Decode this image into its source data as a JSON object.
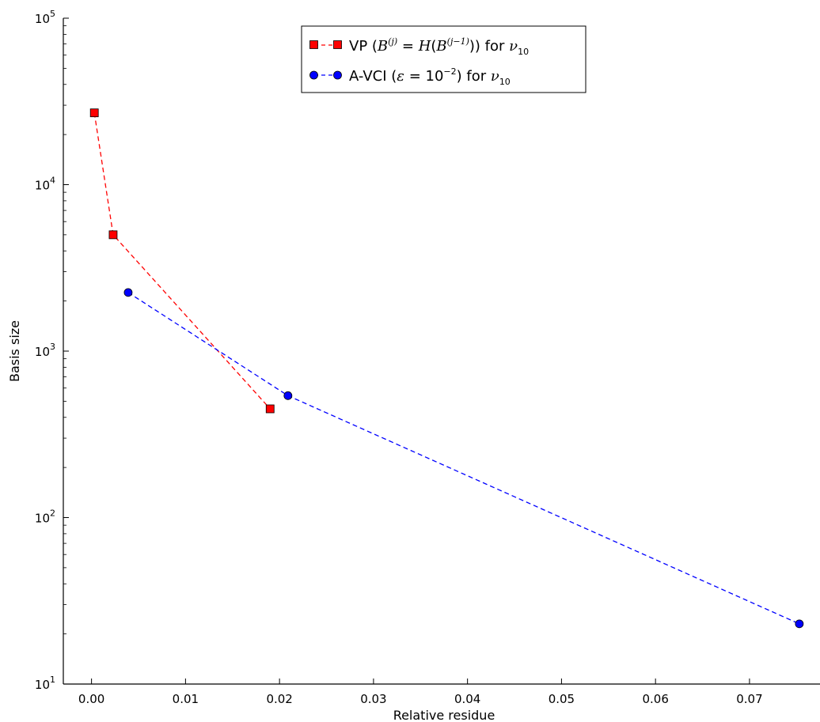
{
  "chart_data": {
    "type": "scatter",
    "title": "",
    "xlabel": "Relative residue",
    "ylabel": "Basis size",
    "xlim": [
      -0.003,
      0.0775
    ],
    "ylim": [
      10,
      100000
    ],
    "yscale": "log",
    "grid": false,
    "legend_position": "top-center",
    "x_ticks": [
      "0.00",
      "0.01",
      "0.02",
      "0.03",
      "0.04",
      "0.05",
      "0.06",
      "0.07"
    ],
    "x_tick_values": [
      0,
      0.01,
      0.02,
      0.03,
      0.04,
      0.05,
      0.06,
      0.07
    ],
    "y_tick_values": [
      10,
      100,
      1000,
      10000,
      100000
    ],
    "y_ticks": [
      {
        "base": "10",
        "exp": "1"
      },
      {
        "base": "10",
        "exp": "2"
      },
      {
        "base": "10",
        "exp": "3"
      },
      {
        "base": "10",
        "exp": "4"
      },
      {
        "base": "10",
        "exp": "5"
      }
    ],
    "series": [
      {
        "name": "VP (B(j) = H(B(j−1))) for ν10",
        "color": "#ff0000",
        "marker": "square",
        "linestyle": "dashed",
        "x": [
          0.0003,
          0.0023,
          0.019
        ],
        "y": [
          27000,
          5000,
          450
        ]
      },
      {
        "name": "A-VCI (ε = 10−2) for ν10",
        "color": "#0000ff",
        "marker": "circle",
        "linestyle": "dashed",
        "x": [
          0.0039,
          0.0209,
          0.0753
        ],
        "y": [
          2250,
          540,
          23
        ]
      }
    ],
    "legend": {
      "vp": {
        "prefix": "VP (",
        "b": "B",
        "bsup": "(j)",
        "eq": " = ",
        "h": "H",
        "paren_open": "(",
        "b2": "B",
        "b2sup": "(j−1)",
        "close": "))",
        "for": " for ",
        "nu": "ν",
        "nusub": "10"
      },
      "avci": {
        "prefix": "A-VCI (",
        "eps": "ε",
        "eq": " = ",
        "ten": "10",
        "tensup": "−2",
        "close": ")",
        "for": " for ",
        "nu": "ν",
        "nusub": "10"
      }
    }
  }
}
